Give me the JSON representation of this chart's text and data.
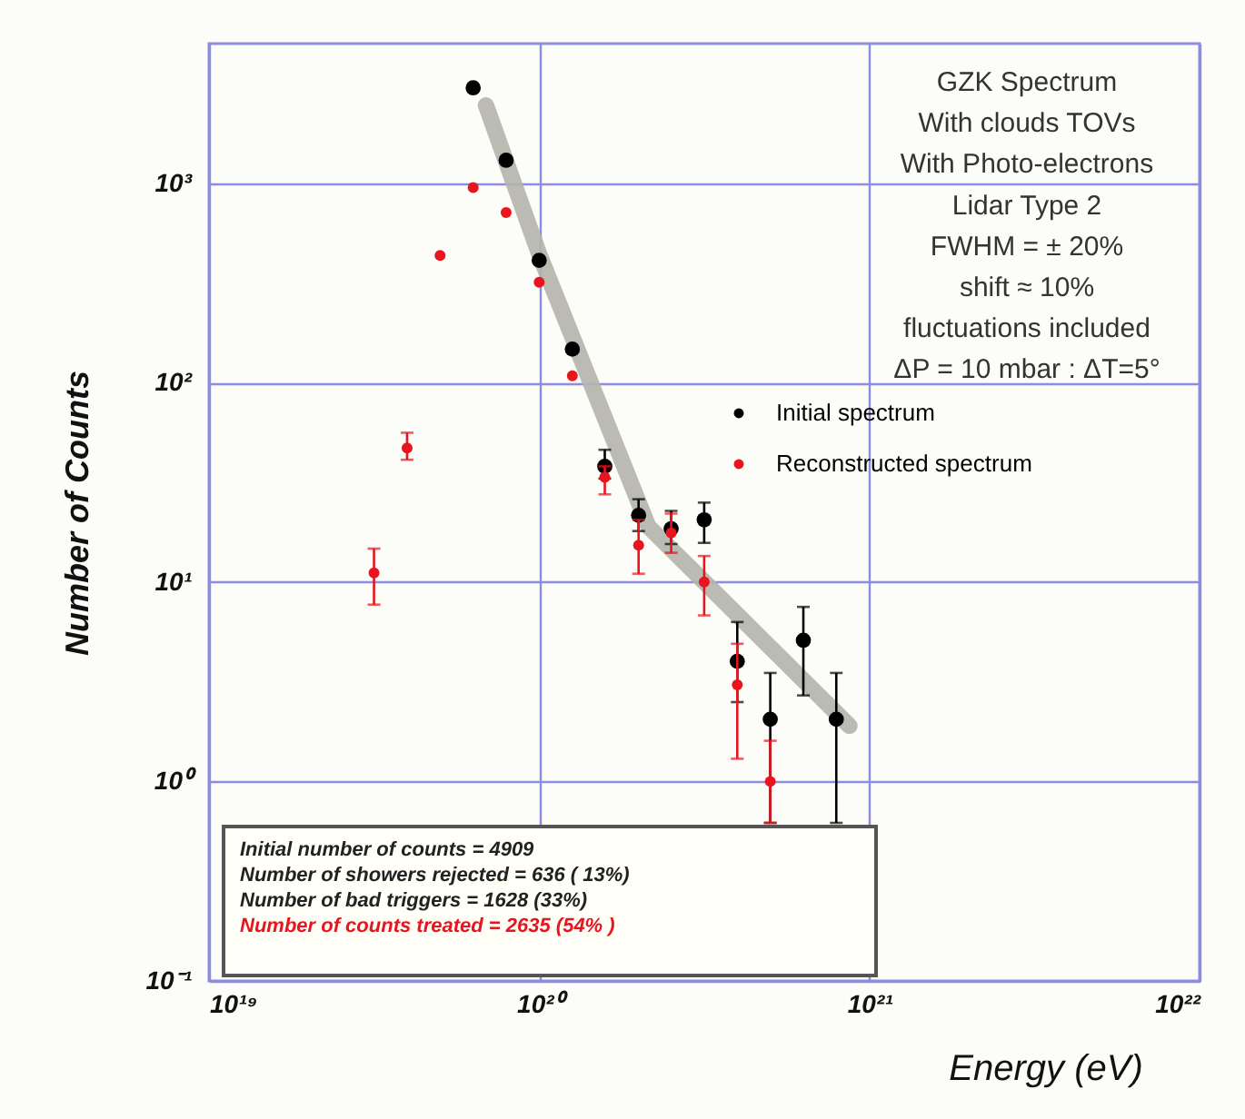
{
  "chart_data": {
    "type": "scatter",
    "xlabel": "Energy (eV)",
    "ylabel": "Number of Counts",
    "log": "xy",
    "xlim": [
      1e+19,
      1e+22
    ],
    "ylim": [
      0.1,
      5000
    ],
    "xticks": [
      {
        "value": 1e+19,
        "label": "10¹⁹"
      },
      {
        "value": 1e+20,
        "label": "10²⁰"
      },
      {
        "value": 1e+21,
        "label": "10²¹"
      },
      {
        "value": 1e+22,
        "label": "10²²"
      }
    ],
    "yticks": [
      {
        "value": 0.1,
        "label": "10⁻¹"
      },
      {
        "value": 1,
        "label": "10⁰"
      },
      {
        "value": 10,
        "label": "10¹"
      },
      {
        "value": 100,
        "label": "10²"
      },
      {
        "value": 1000,
        "label": "10³"
      }
    ],
    "grid": true,
    "legend": "top right",
    "marker": "circle",
    "annotations": [
      "GZK Spectrum",
      "With clouds TOVs",
      "With Photo-electrons",
      "Lidar Type 2",
      "FWHM = ± 20%",
      "shift ≈ 10%",
      "fluctuations included",
      "ΔP = 10 mbar : ΔT=5°",
      "Initial number of counts =    4909",
      "Number of showers rejected =  636 ( 13%)",
      "Number of bad triggers     =       1628 (33%)",
      "Number of counts treated = 2635  (54% )"
    ],
    "series": [
      {
        "type": "line",
        "color": "#b4b4ac",
        "marker": "none",
        "x": [
          6.9e+19,
          1e+20,
          2.14e+20,
          8.7e+20
        ],
        "values": [
          2450,
          440,
          19,
          1.9
        ]
      },
      {
        "name": "Initial spectrum",
        "color": "#000000",
        "x": [
          6.31e+19,
          7.94e+19,
          1e+20,
          1.26e+20,
          1.58e+20,
          2e+20,
          2.51e+20,
          3.16e+20,
          3.98e+20,
          5.01e+20,
          6.31e+20,
          7.94e+20
        ],
        "values": [
          3000,
          1300,
          410,
          147,
          38,
          21.6,
          18.5,
          20.5,
          4,
          2.05,
          5.1,
          2.05
        ],
        "errors": [
          null,
          null,
          null,
          null,
          [
            33,
            46
          ],
          [
            18,
            26
          ],
          [
            15.5,
            22.7
          ],
          [
            15.7,
            25
          ],
          [
            2.5,
            6.3
          ],
          [
            0.62,
            3.5
          ],
          [
            2.7,
            7.5
          ],
          [
            0.62,
            3.5
          ]
        ]
      },
      {
        "name": "Reconstructed spectrum",
        "color": "#e8141e",
        "x": [
          3.16e+19,
          3.98e+19,
          5.01e+19,
          6.31e+19,
          7.94e+19,
          1e+20,
          1.26e+20,
          1.58e+20,
          2e+20,
          2.51e+20,
          3.16e+20,
          3.98e+20,
          5.01e+20
        ],
        "values": [
          11.1,
          47,
          433,
          950,
          711,
          318,
          108,
          33.5,
          15.3,
          17.6,
          10,
          3.05,
          1.0
        ],
        "errors": [
          [
            7.7,
            14.7
          ],
          [
            41,
            56
          ],
          null,
          null,
          null,
          null,
          null,
          [
            27.5,
            38
          ],
          [
            11,
            20.5
          ],
          [
            14,
            22
          ],
          [
            6.8,
            13.5
          ],
          [
            1.3,
            4.9
          ],
          [
            0.62,
            1.6
          ]
        ]
      }
    ]
  }
}
